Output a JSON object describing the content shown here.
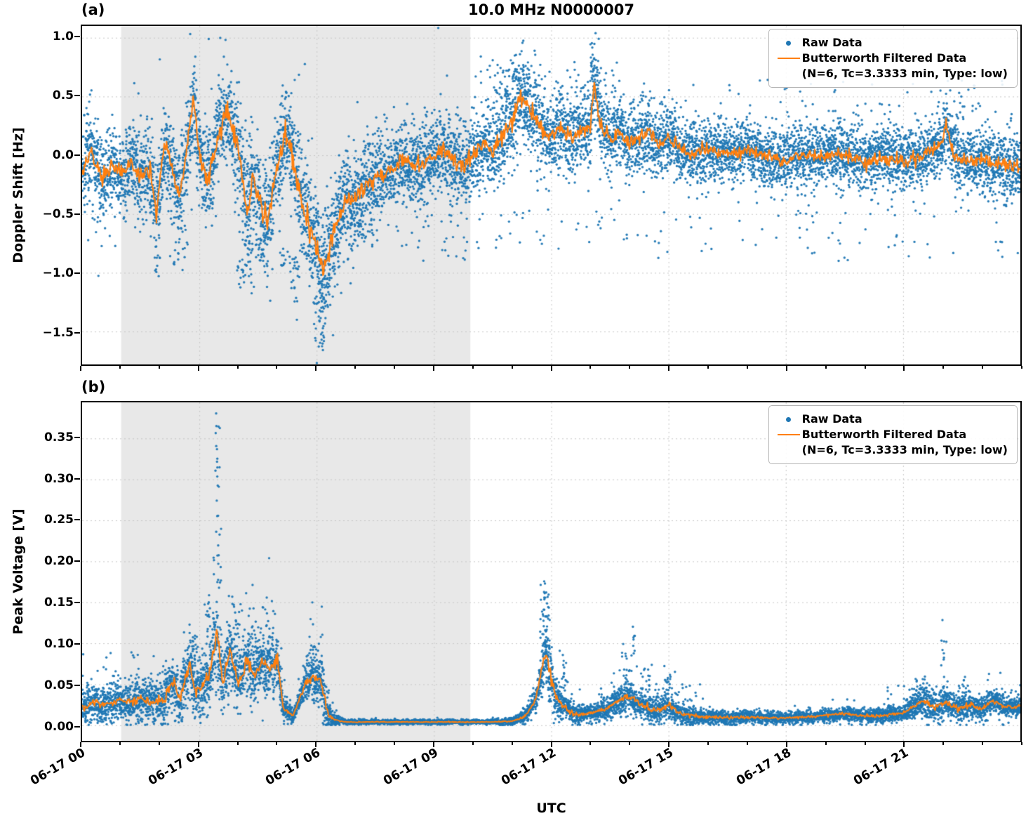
{
  "figure": {
    "title": "10.0 MHz N0000007",
    "xlabel": "UTC",
    "panel_a_tag": "(a)",
    "panel_b_tag": "(b)"
  },
  "colors": {
    "raw": "#1f77b4",
    "filtered": "#ff7f0e",
    "shade": "#e8e8e8",
    "grid": "#c6c6c6",
    "axis": "#000000"
  },
  "legend": {
    "raw_label": "Raw Data",
    "filtered_label": "Butterworth Filtered Data",
    "filtered_sublabel": "(N=6, Tc=3.3333 min, Type: low)"
  },
  "x_axis": {
    "range_hours": [
      0,
      24
    ],
    "tick_hours": [
      0,
      3,
      6,
      9,
      12,
      15,
      18,
      21
    ],
    "tick_labels": [
      "06-17 00",
      "06-17 03",
      "06-17 06",
      "06-17 09",
      "06-17 12",
      "06-17 15",
      "06-17 18",
      "06-17 21"
    ],
    "minor_tick_step_hours": 1,
    "shaded_region_hours": [
      1.0,
      9.93
    ]
  },
  "chart_data": [
    {
      "type": "scatter",
      "panel": "a",
      "ylabel": "Doppler Shift [Hz]",
      "ylim": [
        -1.78,
        1.1
      ],
      "yticks": {
        "values": [
          1.0,
          0.5,
          0.0,
          -0.5,
          -1.0,
          -1.5
        ],
        "labels": [
          "1.0",
          "0.5",
          "0.0",
          "−0.5",
          "−1.0",
          "−1.5"
        ]
      },
      "filtered": {
        "x": [
          0,
          0.25,
          0.5,
          0.75,
          1.0,
          1.25,
          1.5,
          1.75,
          1.9,
          2.1,
          2.25,
          2.5,
          2.7,
          2.85,
          3.0,
          3.2,
          3.4,
          3.6,
          3.75,
          4.0,
          4.2,
          4.4,
          4.6,
          4.75,
          5.0,
          5.2,
          5.4,
          5.6,
          5.8,
          6.0,
          6.15,
          6.3,
          6.5,
          6.75,
          7.0,
          7.25,
          7.5,
          7.75,
          8.0,
          8.25,
          8.5,
          8.75,
          9.0,
          9.25,
          9.5,
          9.75,
          10.0,
          10.25,
          10.5,
          10.75,
          11.0,
          11.2,
          11.4,
          11.6,
          11.8,
          12.0,
          12.25,
          12.5,
          12.75,
          13.0,
          13.1,
          13.25,
          13.5,
          13.75,
          14.0,
          14.25,
          14.5,
          14.75,
          15.0,
          15.5,
          16.0,
          16.5,
          17.0,
          17.5,
          18.0,
          18.5,
          19.0,
          19.5,
          20.0,
          20.5,
          21.0,
          21.5,
          21.75,
          22.0,
          22.1,
          22.3,
          22.5,
          23.0,
          23.5,
          24.0
        ],
        "y": [
          -0.15,
          0.05,
          -0.2,
          -0.1,
          -0.15,
          -0.05,
          -0.2,
          -0.1,
          -0.5,
          0.1,
          -0.05,
          -0.35,
          0.1,
          0.5,
          0.0,
          -0.2,
          0.05,
          0.3,
          0.35,
          0.05,
          -0.45,
          -0.2,
          -0.5,
          -0.55,
          -0.05,
          0.2,
          -0.05,
          -0.35,
          -0.55,
          -0.75,
          -1.0,
          -0.85,
          -0.55,
          -0.4,
          -0.35,
          -0.25,
          -0.2,
          -0.15,
          -0.1,
          -0.05,
          -0.1,
          -0.05,
          0.0,
          0.05,
          -0.05,
          -0.1,
          0.0,
          0.1,
          0.05,
          0.15,
          0.3,
          0.5,
          0.4,
          0.3,
          0.2,
          0.15,
          0.25,
          0.15,
          0.2,
          0.25,
          0.65,
          0.25,
          0.15,
          0.2,
          0.1,
          0.15,
          0.2,
          0.1,
          0.15,
          0.0,
          0.05,
          0.0,
          0.05,
          0.0,
          -0.05,
          0.0,
          0.0,
          0.0,
          -0.05,
          -0.02,
          -0.05,
          0.0,
          0.05,
          0.1,
          0.25,
          0.0,
          -0.05,
          -0.05,
          -0.08,
          -0.1
        ]
      },
      "raw": {
        "n_base": 9500,
        "seed": 7,
        "fold_negative": false,
        "spread_x": [
          0,
          2,
          4,
          5,
          6.0,
          6.5,
          8,
          10,
          11,
          13,
          15,
          18,
          21,
          24
        ],
        "spread_y": [
          0.2,
          0.22,
          0.26,
          0.28,
          0.3,
          0.26,
          0.2,
          0.2,
          0.22,
          0.19,
          0.16,
          0.15,
          0.16,
          0.17
        ],
        "clusters": [
          [
            1.95,
            -0.85,
            10,
            0.05,
            0.08
          ],
          [
            2.5,
            -0.8,
            18,
            0.12,
            0.12
          ],
          [
            4.05,
            -1.0,
            10,
            0.05,
            0.12
          ],
          [
            4.25,
            -0.95,
            28,
            0.1,
            0.15
          ],
          [
            4.6,
            -0.8,
            15,
            0.08,
            0.1
          ],
          [
            5.15,
            -0.9,
            12,
            0.06,
            0.1
          ],
          [
            5.45,
            -1.05,
            22,
            0.07,
            0.12
          ],
          [
            6.12,
            -1.3,
            40,
            0.08,
            0.17
          ],
          [
            6.12,
            -1.55,
            10,
            0.04,
            0.06
          ],
          [
            6.6,
            -0.8,
            25,
            0.2,
            0.15
          ],
          [
            7.2,
            -0.6,
            20,
            0.25,
            0.12
          ],
          [
            10.6,
            0.55,
            25,
            0.15,
            0.12
          ],
          [
            11.2,
            0.62,
            50,
            0.25,
            0.13
          ],
          [
            12.9,
            0.55,
            20,
            0.3,
            0.1
          ],
          [
            13.05,
            0.8,
            14,
            0.05,
            0.09
          ]
        ],
        "sparse": [
          [
            0.1,
            1.0,
            -0.8,
            -0.5,
            10
          ],
          [
            8.0,
            10.0,
            -0.9,
            -0.5,
            25
          ],
          [
            10.0,
            14.0,
            -0.8,
            -0.45,
            35
          ],
          [
            14.0,
            24.0,
            -0.9,
            -0.45,
            60
          ],
          [
            14.0,
            24.0,
            0.35,
            0.65,
            45
          ],
          [
            10.0,
            14.0,
            0.55,
            0.85,
            25
          ],
          [
            22.0,
            23.0,
            0.3,
            0.6,
            12
          ]
        ]
      }
    },
    {
      "type": "scatter",
      "panel": "b",
      "ylabel": "Peak Voltage [V]",
      "ylim": [
        -0.019,
        0.394
      ],
      "yticks": {
        "values": [
          0.0,
          0.05,
          0.1,
          0.15,
          0.2,
          0.25,
          0.3,
          0.35
        ],
        "labels": [
          "0.00",
          "0.05",
          "0.10",
          "0.15",
          "0.20",
          "0.25",
          "0.30",
          "0.35"
        ]
      },
      "filtered": {
        "x": [
          0,
          0.3,
          0.6,
          0.9,
          1.2,
          1.5,
          1.8,
          2.1,
          2.3,
          2.5,
          2.75,
          2.9,
          3.1,
          3.25,
          3.45,
          3.6,
          3.8,
          4.0,
          4.2,
          4.4,
          4.6,
          4.8,
          5.0,
          5.15,
          5.4,
          5.7,
          5.9,
          6.1,
          6.3,
          6.5,
          6.75,
          7.0,
          7.5,
          8.0,
          8.5,
          9.0,
          9.5,
          10.0,
          10.5,
          11.0,
          11.3,
          11.6,
          11.85,
          12.1,
          12.35,
          12.6,
          13.0,
          13.4,
          13.9,
          14.1,
          14.4,
          14.7,
          15.0,
          15.3,
          15.7,
          16.0,
          16.5,
          17.0,
          17.5,
          18.0,
          18.5,
          19.0,
          19.5,
          20.0,
          20.5,
          21.0,
          21.5,
          21.8,
          22.1,
          22.4,
          22.7,
          23.0,
          23.3,
          23.6,
          24.0
        ],
        "y": [
          0.02,
          0.028,
          0.025,
          0.03,
          0.028,
          0.033,
          0.028,
          0.03,
          0.055,
          0.03,
          0.075,
          0.04,
          0.05,
          0.06,
          0.115,
          0.055,
          0.09,
          0.05,
          0.08,
          0.06,
          0.075,
          0.07,
          0.08,
          0.02,
          0.012,
          0.05,
          0.06,
          0.055,
          0.012,
          0.006,
          0.004,
          0.004,
          0.004,
          0.004,
          0.004,
          0.004,
          0.004,
          0.004,
          0.004,
          0.005,
          0.01,
          0.03,
          0.09,
          0.035,
          0.022,
          0.012,
          0.015,
          0.02,
          0.035,
          0.032,
          0.022,
          0.018,
          0.025,
          0.014,
          0.011,
          0.01,
          0.009,
          0.01,
          0.009,
          0.009,
          0.01,
          0.012,
          0.014,
          0.011,
          0.012,
          0.015,
          0.03,
          0.022,
          0.028,
          0.02,
          0.025,
          0.02,
          0.03,
          0.022,
          0.024
        ]
      },
      "raw": {
        "n_base": 9500,
        "seed": 21,
        "fold_negative": true,
        "spread_x": [
          0,
          1,
          2,
          3,
          3.5,
          4,
          5,
          5.15,
          5.5,
          5.8,
          6.2,
          6.45,
          6.7,
          10.6,
          11.2,
          11.6,
          11.9,
          12.4,
          13,
          14,
          15,
          16,
          18,
          20,
          21,
          21.6,
          22.3,
          23,
          24
        ],
        "spread_y": [
          0.012,
          0.013,
          0.016,
          0.02,
          0.028,
          0.022,
          0.02,
          0.008,
          0.004,
          0.018,
          0.018,
          0.004,
          0.0015,
          0.0015,
          0.004,
          0.008,
          0.022,
          0.008,
          0.006,
          0.012,
          0.009,
          0.005,
          0.004,
          0.005,
          0.006,
          0.012,
          0.01,
          0.008,
          0.008
        ],
        "clusters": [
          [
            3.45,
            0.22,
            30,
            0.05,
            0.08
          ],
          [
            3.45,
            0.33,
            8,
            0.03,
            0.03
          ],
          [
            2.85,
            0.1,
            20,
            0.07,
            0.03
          ],
          [
            3.2,
            0.13,
            15,
            0.05,
            0.02
          ],
          [
            3.9,
            0.12,
            25,
            0.12,
            0.03
          ],
          [
            4.35,
            0.12,
            20,
            0.1,
            0.03
          ],
          [
            4.7,
            0.11,
            30,
            0.15,
            0.03
          ],
          [
            5.9,
            0.1,
            22,
            0.09,
            0.025
          ],
          [
            6.1,
            0.07,
            12,
            0.05,
            0.02
          ],
          [
            11.85,
            0.11,
            45,
            0.09,
            0.03
          ],
          [
            11.85,
            0.155,
            10,
            0.04,
            0.012
          ],
          [
            12.0,
            0.05,
            20,
            0.15,
            0.02
          ],
          [
            12.35,
            0.065,
            14,
            0.04,
            0.015
          ],
          [
            13.9,
            0.075,
            18,
            0.08,
            0.02
          ],
          [
            14.1,
            0.1,
            8,
            0.02,
            0.012
          ],
          [
            14.5,
            0.05,
            15,
            0.1,
            0.012
          ],
          [
            15.0,
            0.05,
            14,
            0.07,
            0.012
          ],
          [
            21.5,
            0.045,
            18,
            0.12,
            0.01
          ],
          [
            22.0,
            0.085,
            10,
            0.03,
            0.015
          ],
          [
            22.55,
            0.04,
            12,
            0.08,
            0.01
          ],
          [
            23.3,
            0.035,
            14,
            0.1,
            0.008
          ]
        ],
        "sparse": [
          [
            0.0,
            5.2,
            0.05,
            0.095,
            60
          ],
          [
            13.0,
            16.0,
            0.03,
            0.05,
            30
          ],
          [
            20.5,
            24.0,
            0.03,
            0.05,
            25
          ]
        ]
      }
    }
  ]
}
